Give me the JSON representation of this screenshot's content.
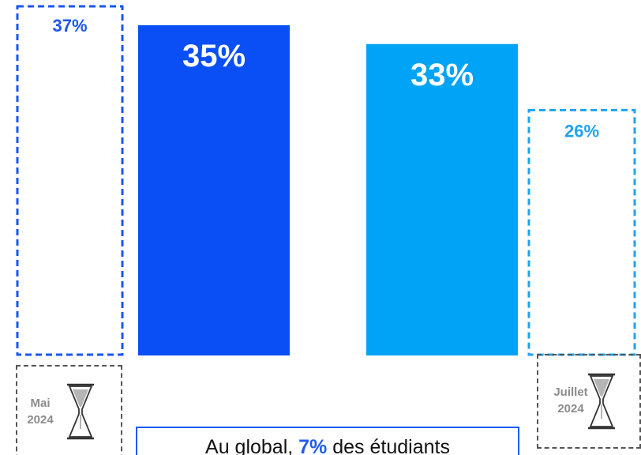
{
  "chart_data": {
    "type": "bar",
    "categories": [
      "Mai 2024",
      "",
      "",
      "Juillet 2024"
    ],
    "values": [
      37,
      35,
      33,
      26
    ],
    "value_labels": [
      "37%",
      "35%",
      "33%",
      "26%"
    ],
    "bar_styles": [
      "dashed-outline",
      "solid",
      "solid",
      "dashed-outline"
    ],
    "bar_colors": [
      "#1a56f0",
      "#0a4ff5",
      "#00a3f5",
      "#1fa3f0"
    ],
    "label_colors": [
      "#1a56f0",
      "#ffffff",
      "#ffffff",
      "#1fa3f0"
    ],
    "ylim": [
      0,
      37
    ]
  },
  "periods": {
    "left": {
      "line1": "Mai",
      "line2": "2024",
      "icon": "hourglass-icon"
    },
    "right": {
      "line1": "Juillet",
      "line2": "2024",
      "icon": "hourglass-icon"
    }
  },
  "summary": {
    "prefix": "Au global, ",
    "highlight": "7%",
    "suffix": " des étudiants"
  },
  "colors": {
    "summary_border": "#1f5bf0",
    "period_border": "#555555",
    "period_text": "#8c8c8c"
  }
}
